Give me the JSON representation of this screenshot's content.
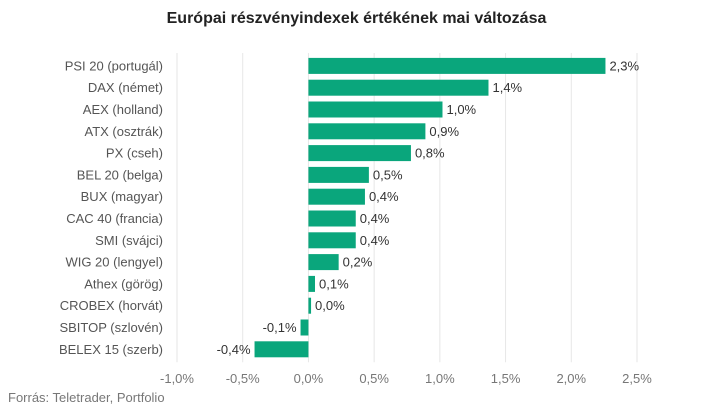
{
  "chart_data": {
    "type": "bar",
    "orientation": "horizontal",
    "title": "Európai részvényindexek értékének mai változása",
    "source": "Forrás: Teletrader, Portfolio",
    "categories": [
      "PSI 20 (portugál)",
      "DAX (német)",
      "AEX (holland)",
      "ATX (osztrák)",
      "PX (cseh)",
      "BEL 20 (belga)",
      "BUX (magyar)",
      "CAC 40 (francia)",
      "SMI (svájci)",
      "WIG 20 (lengyel)",
      "Athex (görög)",
      "CROBEX (horvát)",
      "SBITOP (szlovén)",
      "BELEX 15 (szerb)"
    ],
    "values": [
      2.26,
      1.37,
      1.02,
      0.89,
      0.78,
      0.46,
      0.43,
      0.36,
      0.36,
      0.23,
      0.05,
      0.02,
      -0.06,
      -0.41
    ],
    "data_labels": [
      "2,3%",
      "1,4%",
      "1,0%",
      "0,9%",
      "0,8%",
      "0,5%",
      "0,4%",
      "0,4%",
      "0,4%",
      "0,2%",
      "0,1%",
      "0,0%",
      "-0,1%",
      "-0,4%"
    ],
    "xlim": [
      -1.0,
      2.5
    ],
    "xticks": [
      -1.0,
      -0.5,
      0.0,
      0.5,
      1.0,
      1.5,
      2.0,
      2.5
    ],
    "xtick_labels": [
      "-1,0%",
      "-0,5%",
      "0,0%",
      "0,5%",
      "1,0%",
      "1,5%",
      "2,0%",
      "2,5%"
    ],
    "grid": "vertical",
    "bar_color": "#0aa67c",
    "grid_color": "#e6e6e6"
  }
}
